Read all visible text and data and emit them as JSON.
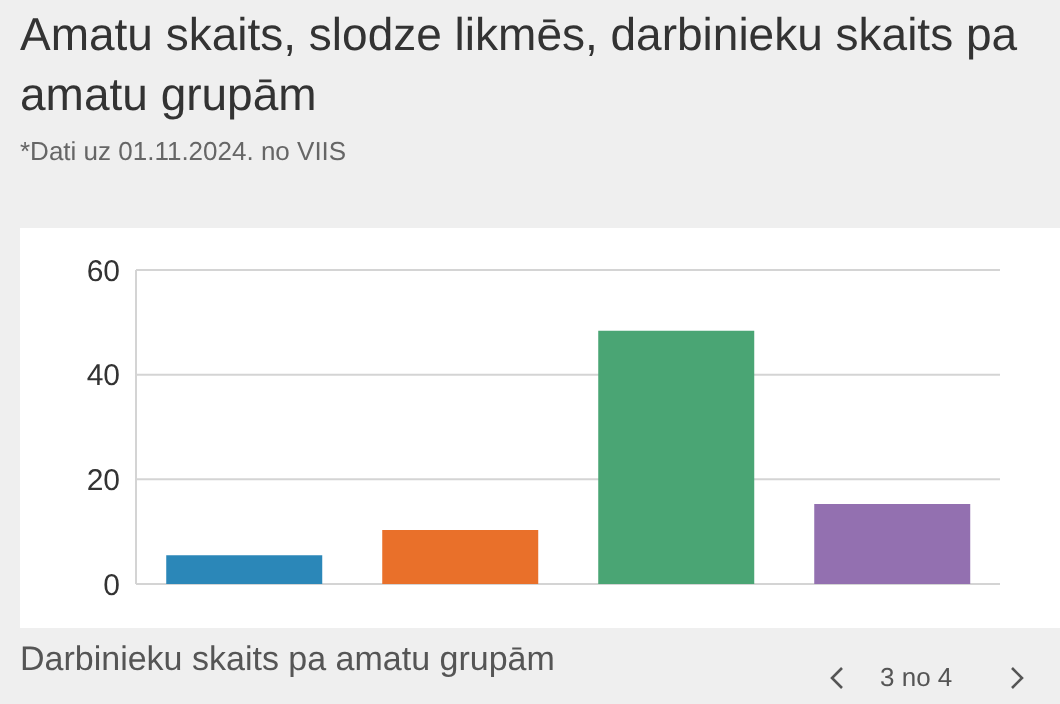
{
  "chart_data": {
    "type": "bar",
    "title": "Amatu skaits, slodze likmēs, darbinieku skaits pa amatu grupām",
    "subtitle": "*Dati uz 01.11.2024. no VIIS",
    "categories": [
      null,
      null,
      null,
      null
    ],
    "values": [
      5.5,
      10.3,
      48.4,
      15.3
    ],
    "colors": [
      "#2b87b8",
      "#e9702a",
      "#4aa574",
      "#9370b0"
    ],
    "ylim": [
      0,
      60
    ],
    "yticks": [
      0,
      20,
      40,
      60
    ],
    "grid": "y",
    "annotations": [
      "Darbinieku skaits pa amatu grupām",
      "3 no 4"
    ]
  }
}
